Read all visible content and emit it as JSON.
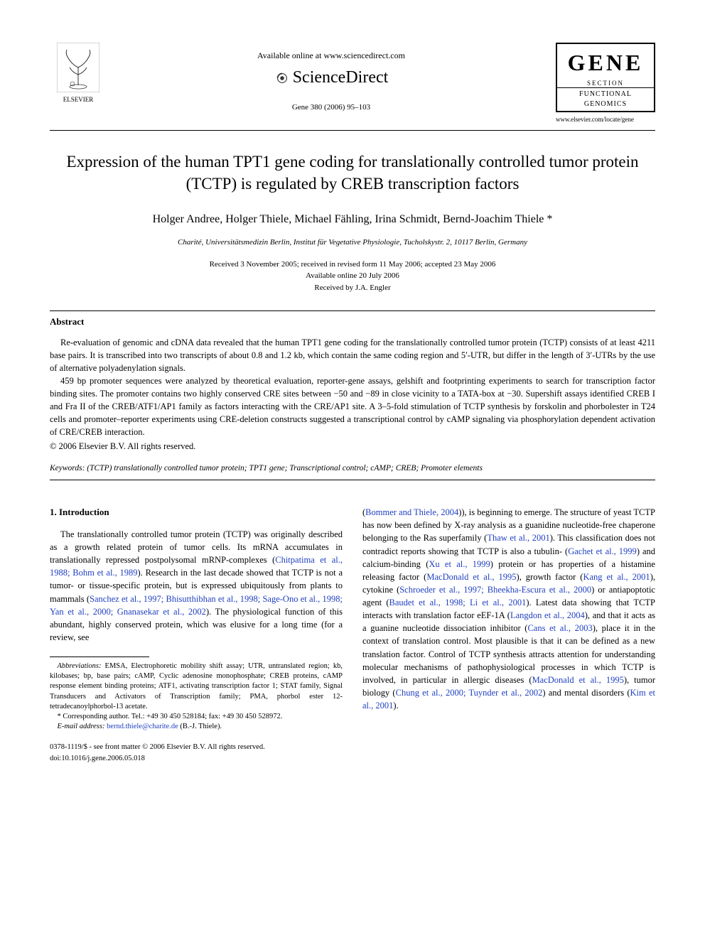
{
  "header": {
    "elsevier_label": "ELSEVIER",
    "available_online": "Available online at www.sciencedirect.com",
    "sciencedirect": "ScienceDirect",
    "journal_ref": "Gene 380 (2006) 95–103",
    "gene_title": "GENE",
    "gene_section_label": "SECTION",
    "gene_subtitle": "FUNCTIONAL GENOMICS",
    "gene_url": "www.elsevier.com/locate/gene"
  },
  "article": {
    "title": "Expression of the human TPT1 gene coding for translationally controlled tumor protein (TCTP) is regulated by CREB transcription factors",
    "authors": "Holger Andree, Holger Thiele, Michael Fähling, Irina Schmidt, Bernd-Joachim Thiele *",
    "affiliation": "Charité, Universitätsmedizin Berlin, Institut für Vegetative Physiologie, Tucholskystr. 2, 10117 Berlin, Germany",
    "dates_line1": "Received 3 November 2005; received in revised form 11 May 2006; accepted 23 May 2006",
    "dates_line2": "Available online 20 July 2006",
    "dates_line3": "Received by J.A. Engler"
  },
  "abstract": {
    "heading": "Abstract",
    "p1": "Re-evaluation of genomic and cDNA data revealed that the human TPT1 gene coding for the translationally controlled tumor protein (TCTP) consists of at least 4211 base pairs. It is transcribed into two transcripts of about 0.8 and 1.2 kb, which contain the same coding region and 5′-UTR, but differ in the length of 3′-UTRs by the use of alternative polyadenylation signals.",
    "p2": "459 bp promoter sequences were analyzed by theoretical evaluation, reporter-gene assays, gelshift and footprinting experiments to search for transcription factor binding sites. The promoter contains two highly conserved CRE sites between −50 and −89 in close vicinity to a TATA-box at −30. Supershift assays identified CREB I and Fra II of the CREB/ATF1/AP1 family as factors interacting with the CRE/AP1 site. A 3–5-fold stimulation of TCTP synthesis by forskolin and phorbolester in T24 cells and promoter–reporter experiments using CRE-deletion constructs suggested a transcriptional control by cAMP signaling via phosphorylation dependent activation of CRE/CREB interaction.",
    "copyright": "© 2006 Elsevier B.V. All rights reserved."
  },
  "keywords": {
    "label": "Keywords:",
    "text": " (TCTP) translationally controlled tumor protein; TPT1 gene; Transcriptional control; cAMP; CREB; Promoter elements"
  },
  "intro": {
    "heading": "1. Introduction",
    "left_text_parts": [
      "The translationally controlled tumor protein (TCTP) was originally described as a growth related protein of tumor cells. Its mRNA accumulates in translationally repressed postpolysomal mRNP-complexes (",
      "Chitpatima et al., 1988; Bohm et al., 1989",
      "). Research in the last decade showed that TCTP is not a tumor- or tissue-specific protein, but is expressed ubiquitously from plants to mammals (",
      "Sanchez et al., 1997; Bhisutthibhan et al., 1998; Sage-Ono et al., 1998; Yan et al., 2000; Gnanasekar et al., 2002",
      "). The physiological function of this abundant, highly conserved protein, which was elusive for a long time (for a review, see"
    ],
    "right_text_parts": [
      "(",
      "Bommer and Thiele, 2004",
      ")), is beginning to emerge. The structure of yeast TCTP has now been defined by X-ray analysis as a guanidine nucleotide-free chaperone belonging to the Ras superfamily (",
      "Thaw et al., 2001",
      "). This classification does not contradict reports showing that TCTP is also a tubulin- (",
      "Gachet et al., 1999",
      ") and calcium-binding (",
      "Xu et al., 1999",
      ") protein or has properties of a histamine releasing factor (",
      "MacDonald et al., 1995",
      "), growth factor (",
      "Kang et al., 2001",
      "), cytokine (",
      "Schroeder et al., 1997; Bheekha-Escura et al., 2000",
      ") or antiapoptotic agent (",
      "Baudet et al., 1998; Li et al., 2001",
      "). Latest data showing that TCTP interacts with translation factor eEF-1A (",
      "Langdon et al., 2004",
      "), and that it acts as a guanine nucleotide dissociation inhibitor (",
      "Cans et al., 2003",
      "), place it in the context of translation control. Most plausible is that it can be defined as a new translation factor. Control of TCTP synthesis attracts attention for understanding molecular mechanisms of pathophysiological processes in which TCTP is involved, in particular in allergic diseases (",
      "MacDonald et al., 1995",
      "), tumor biology (",
      "Chung et al., 2000; Tuynder et al., 2002",
      ") and mental disorders (",
      "Kim et al., 2001",
      ")."
    ]
  },
  "footnotes": {
    "abbrev_label": "Abbreviations:",
    "abbrev_text": " EMSA, Electrophoretic mobility shift assay; UTR, untranslated region; kb, kilobases; bp, base pairs; cAMP, Cyclic adenosine monophosphate; CREB proteins, cAMP response element binding proteins; ATF1, activating transcription factor 1; STAT family, Signal Transducers and Activators of Transcription family; PMA, phorbol ester 12-tetradecanoylphorbol-13 acetate.",
    "corr_label": "* Corresponding author.",
    "corr_text": " Tel.: +49 30 450 528184; fax: +49 30 450 528972.",
    "email_label": "E-mail address:",
    "email": " bernd.thiele@charite.de",
    "email_suffix": " (B.-J. Thiele)."
  },
  "footer": {
    "line1": "0378-1119/$ - see front matter © 2006 Elsevier B.V. All rights reserved.",
    "line2": "doi:10.1016/j.gene.2006.05.018"
  },
  "colors": {
    "citation": "#2040c0",
    "text": "#000000",
    "background": "#ffffff"
  }
}
